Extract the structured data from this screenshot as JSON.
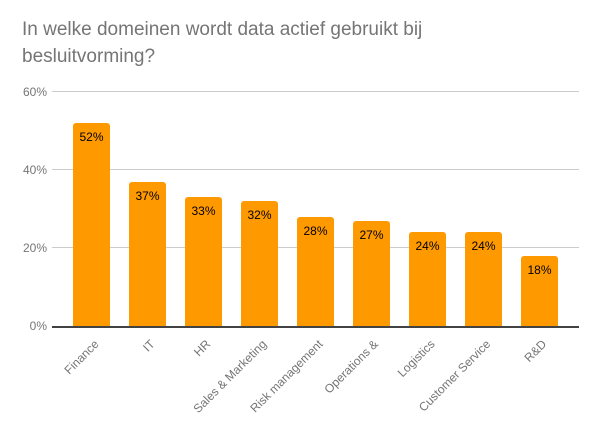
{
  "chart_data": {
    "type": "bar",
    "title": "In welke domeinen wordt data actief gebruikt bij besluitvorming?",
    "categories": [
      "Finance",
      "IT",
      "HR",
      "Sales & Marketing",
      "Risk management",
      "Operations &",
      "Logistics",
      "Customer Service",
      "R&D"
    ],
    "values": [
      52,
      37,
      33,
      32,
      28,
      27,
      24,
      24,
      18
    ],
    "value_labels": [
      "52%",
      "37%",
      "33%",
      "32%",
      "28%",
      "27%",
      "24%",
      "24%",
      "18%"
    ],
    "xlabel": "",
    "ylabel": "",
    "ylim": [
      0,
      60
    ],
    "yticks": [
      {
        "value": 0,
        "label": "0%"
      },
      {
        "value": 20,
        "label": "20%"
      },
      {
        "value": 40,
        "label": "40%"
      },
      {
        "value": 60,
        "label": "60%"
      }
    ],
    "grid": true,
    "legend": "none",
    "colors": {
      "bar": "#FF9900",
      "title": "#757575",
      "axis_labels": "#757575",
      "gridline": "#CCCCCC",
      "axis_line": "#424242",
      "value_label": "#000000",
      "background": "#FFFFFF"
    }
  }
}
